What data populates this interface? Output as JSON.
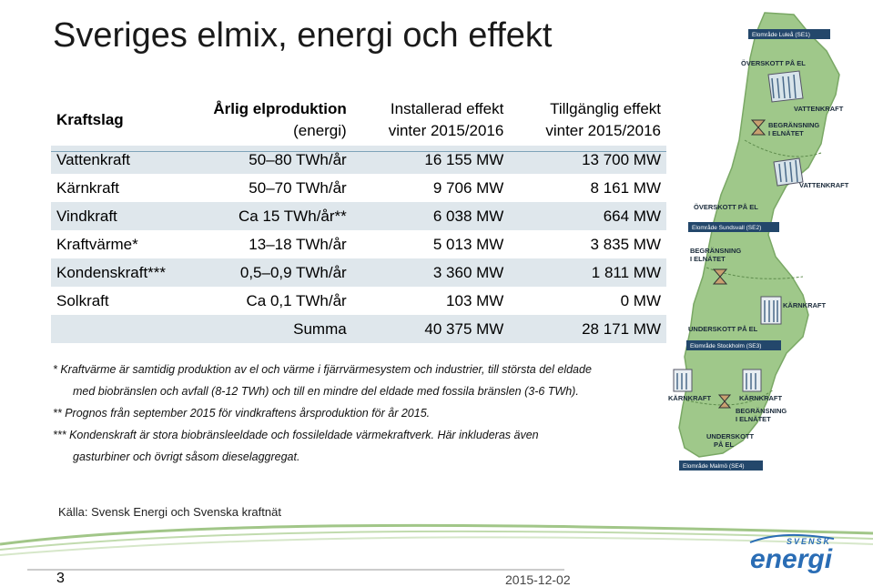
{
  "title": "Sveriges elmix, energi och effekt",
  "table": {
    "headers": {
      "kraftslag": "Kraftslag",
      "arlig_l1": "Årlig elproduktion",
      "arlig_l2": "(energi)",
      "inst_l1": "Installerad effekt",
      "inst_l2": "vinter 2015/2016",
      "tillg_l1": "Tillgänglig effekt",
      "tillg_l2": "vinter 2015/2016"
    },
    "rows": [
      {
        "name": "Vattenkraft",
        "energi": "50–80 TWh/år",
        "installerad": "16 155 MW",
        "tillganglig": "13 700 MW"
      },
      {
        "name": "Kärnkraft",
        "energi": "50–70 TWh/år",
        "installerad": "9 706 MW",
        "tillganglig": "8 161 MW"
      },
      {
        "name": "Vindkraft",
        "energi": "Ca 15 TWh/år**",
        "installerad": "6 038 MW",
        "tillganglig": "664 MW"
      },
      {
        "name": "Kraftvärme*",
        "energi": "13–18 TWh/år",
        "installerad": "5 013 MW",
        "tillganglig": "3 835 MW"
      },
      {
        "name": "Kondenskraft***",
        "energi": "0,5–0,9 TWh/år",
        "installerad": "3 360 MW",
        "tillganglig": "1 811 MW"
      },
      {
        "name": "Solkraft",
        "energi": "Ca 0,1 TWh/år",
        "installerad": "103 MW",
        "tillganglig": "0 MW"
      }
    ],
    "sum": {
      "label": "Summa",
      "installerad": "40 375 MW",
      "tillganglig": "28 171 MW"
    }
  },
  "notes": {
    "n1a": "* Kraftvärme är samtidig produktion av el och värme i fjärrvärmesystem och industrier, till största del eldade",
    "n1b": "med biobränslen och avfall (8-12 TWh) och till en mindre del eldade med fossila bränslen (3-6 TWh).",
    "n2": "** Prognos från september 2015 för vindkraftens årsproduktion för år 2015.",
    "n3a": "*** Kondenskraft är stora biobränsleeldade och fossileldade värmekraftverk. Här inkluderas även",
    "n3b": "gasturbiner och övrigt såsom dieselaggregat."
  },
  "source": "Källa: Svensk Energi och Svenska kraftnät",
  "page_number": "3",
  "date": "2015-12-02",
  "map": {
    "se1": "Elområde Luleå (SE1)",
    "se2": "Elområde Sundsvall (SE2)",
    "se3": "Elområde Stockholm (SE3)",
    "se4": "Elområde Malmö (SE4)",
    "overskott1": "ÖVERSKOTT PÅ EL",
    "overskott2": "ÖVERSKOTT PÅ EL",
    "vattenkraft1": "VATTENKRAFT",
    "vattenkraft2": "VATTENKRAFT",
    "begransning1a": "BEGRÄNSNING",
    "begransning1b": "I ELNÄTET",
    "begransning2a": "BEGRÄNSNING",
    "begransning2b": "I ELNÄTET",
    "begransning3a": "BEGRÄNSNING",
    "begransning3b": "I ELNÄTET",
    "karnkraft1": "KÄRNKRAFT",
    "karnkraft2": "KÄRNKRAFT",
    "karnkraft3": "KÄRNKRAFT",
    "underskott1": "UNDERSKOTT PÅ EL",
    "underskott2a": "UNDERSKOTT",
    "underskott2b": "PÅ EL"
  },
  "logo": {
    "line1": "SVENSK",
    "line2": "energi"
  },
  "colors": {
    "row_shade": "#dfe7ec",
    "map_land": "#9fc88a",
    "map_label": "#23476b",
    "logo_blue": "#2a6db5",
    "swirl_green": "#8ab86a"
  }
}
